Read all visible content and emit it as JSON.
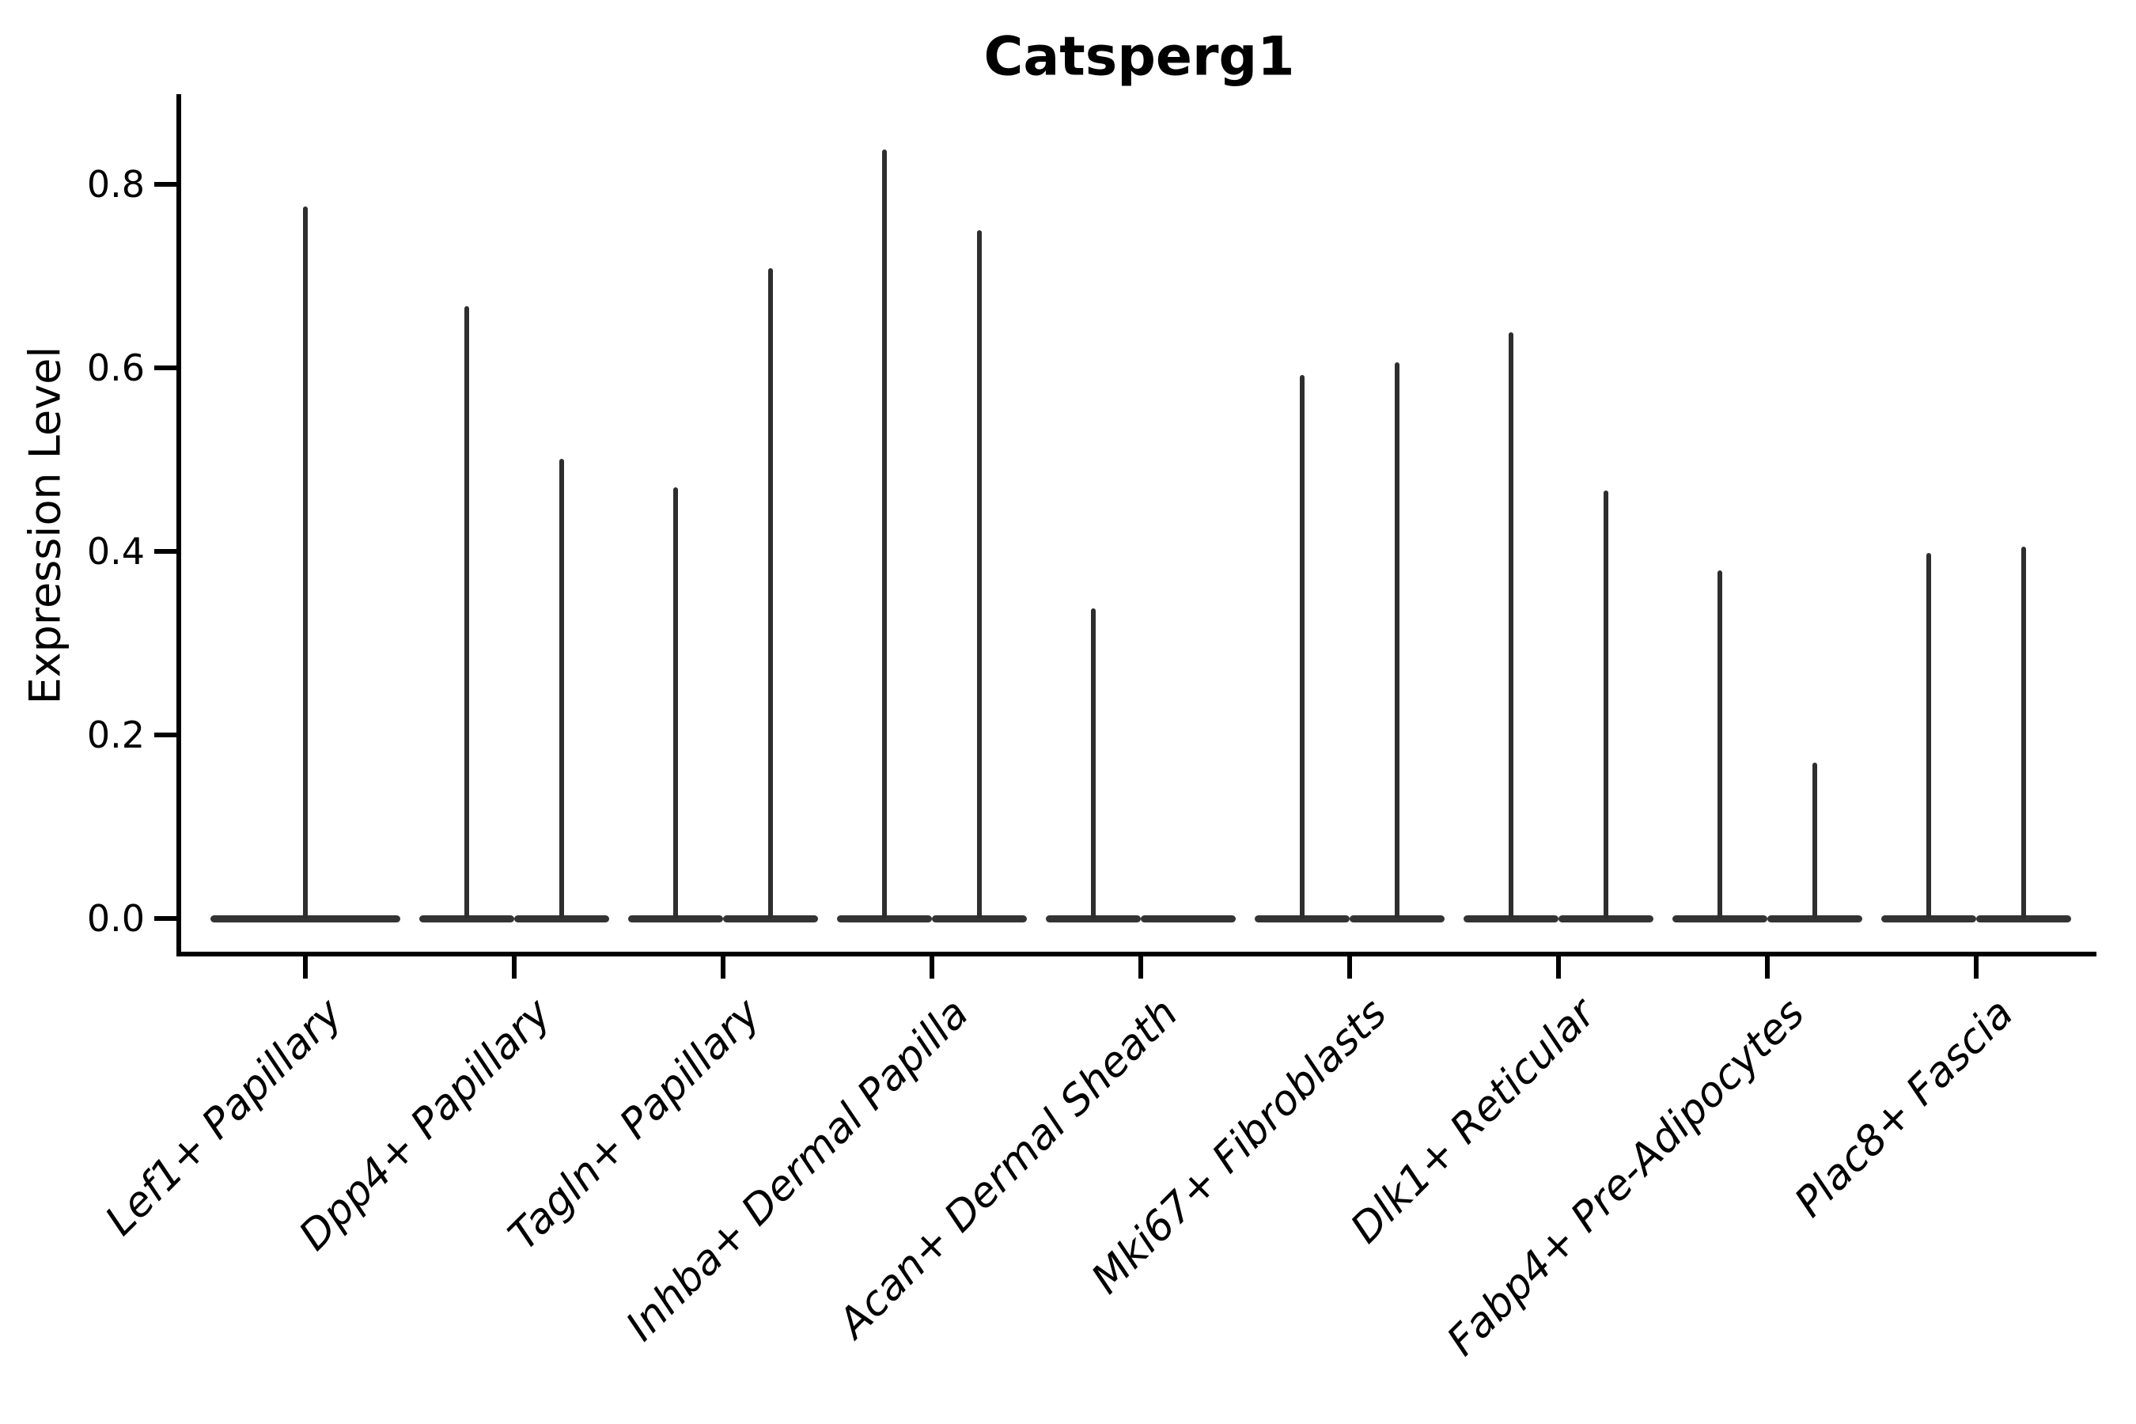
{
  "title": "Catsperg1",
  "chart_data": {
    "type": "violin",
    "title": "Catsperg1",
    "xlabel": "",
    "ylabel": "Expression Level",
    "yticks": [
      "0.0",
      "0.2",
      "0.4",
      "0.6",
      "0.8"
    ],
    "ylim": [
      -0.04,
      0.9
    ],
    "grid": false,
    "legend": "none",
    "x_tick_rotation_deg": 45,
    "categories": [
      "Lef1+ Papillary",
      "Dpp4+ Papillary",
      "Tagln+ Papillary",
      "Inhba+ Dermal Papilla",
      "Acan+ Dermal Sheath",
      "Mki67+ Fibroblasts",
      "Dlk1+ Reticular",
      "Fabp4+ Pre-Adipocytes",
      "Plac8+ Fascia"
    ],
    "groups": [
      {
        "label": "Lef1+ Papillary",
        "violins": [
          {
            "slot": "center",
            "max": 0.776
          }
        ]
      },
      {
        "label": "Dpp4+ Papillary",
        "violins": [
          {
            "slot": "left",
            "max": 0.667
          },
          {
            "slot": "right",
            "max": 0.501
          }
        ]
      },
      {
        "label": "Tagln+ Papillary",
        "violins": [
          {
            "slot": "left",
            "max": 0.47
          },
          {
            "slot": "right",
            "max": 0.709
          }
        ]
      },
      {
        "label": "Inhba+ Dermal Papilla",
        "violins": [
          {
            "slot": "left",
            "max": 0.838
          },
          {
            "slot": "right",
            "max": 0.75
          }
        ]
      },
      {
        "label": "Acan+ Dermal Sheath",
        "violins": [
          {
            "slot": "left",
            "max": 0.338
          },
          {
            "slot": "right",
            "max": 0.0
          }
        ]
      },
      {
        "label": "Mki67+ Fibroblasts",
        "violins": [
          {
            "slot": "left",
            "max": 0.592
          },
          {
            "slot": "right",
            "max": 0.606
          }
        ]
      },
      {
        "label": "Dlk1+ Reticular",
        "violins": [
          {
            "slot": "left",
            "max": 0.639
          },
          {
            "slot": "right",
            "max": 0.466
          }
        ]
      },
      {
        "label": "Fabp4+ Pre-Adipocytes",
        "violins": [
          {
            "slot": "left",
            "max": 0.379
          },
          {
            "slot": "right",
            "max": 0.17
          }
        ]
      },
      {
        "label": "Plac8+ Fascia",
        "violins": [
          {
            "slot": "left",
            "max": 0.398
          },
          {
            "slot": "right",
            "max": 0.405
          }
        ]
      }
    ],
    "colors": {
      "violin": "#2e2e2e",
      "violin_base": "#333333",
      "spine": "#000000",
      "text": "#000000",
      "background": "#ffffff"
    }
  }
}
